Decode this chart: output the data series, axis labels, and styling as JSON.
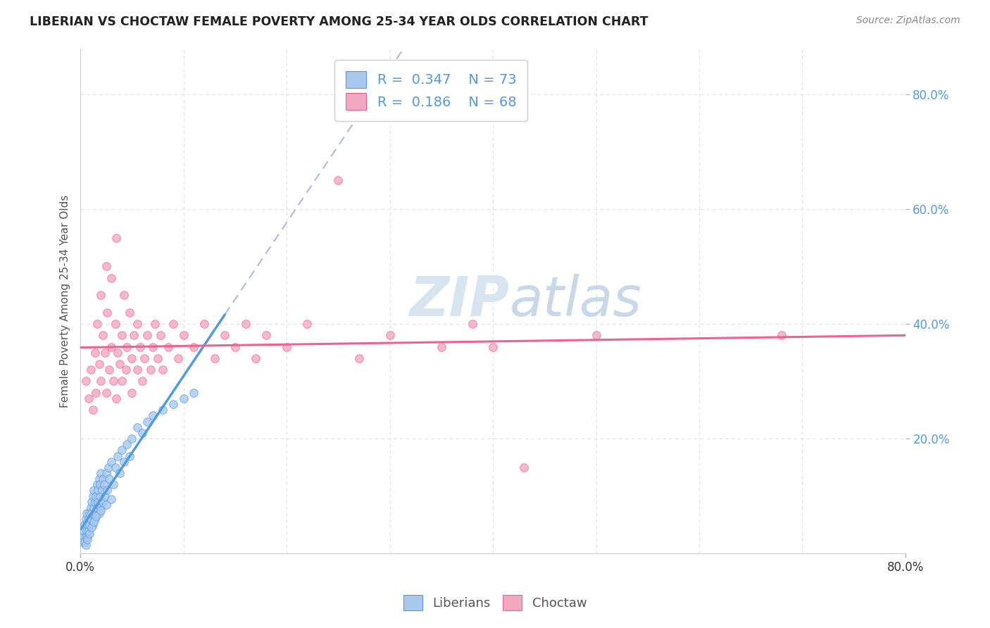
{
  "title": "LIBERIAN VS CHOCTAW FEMALE POVERTY AMONG 25-34 YEAR OLDS CORRELATION CHART",
  "source": "Source: ZipAtlas.com",
  "ylabel": "Female Poverty Among 25-34 Year Olds",
  "xlim": [
    0,
    0.8
  ],
  "ylim": [
    0,
    0.88
  ],
  "ytick_positions": [
    0.2,
    0.4,
    0.6,
    0.8
  ],
  "ytick_labels": [
    "20.0%",
    "40.0%",
    "60.0%",
    "80.0%"
  ],
  "legend_R1": "0.347",
  "legend_N1": "73",
  "legend_R2": "0.186",
  "legend_N2": "68",
  "liberian_color": "#a8c8f0",
  "choctaw_color": "#f4a8c0",
  "liberian_line_color": "#5599dd",
  "choctaw_line_color": "#f06090",
  "ref_line_color": "#aabbdd",
  "watermark_color": "#d8e5f0",
  "background_color": "#ffffff",
  "liberian_points": [
    [
      0.002,
      0.02
    ],
    [
      0.003,
      0.03
    ],
    [
      0.003,
      0.04
    ],
    [
      0.004,
      0.02
    ],
    [
      0.004,
      0.05
    ],
    [
      0.005,
      0.03
    ],
    [
      0.005,
      0.06
    ],
    [
      0.006,
      0.04
    ],
    [
      0.006,
      0.07
    ],
    [
      0.007,
      0.03
    ],
    [
      0.007,
      0.05
    ],
    [
      0.008,
      0.06
    ],
    [
      0.008,
      0.04
    ],
    [
      0.009,
      0.07
    ],
    [
      0.009,
      0.05
    ],
    [
      0.01,
      0.06
    ],
    [
      0.01,
      0.08
    ],
    [
      0.011,
      0.07
    ],
    [
      0.011,
      0.09
    ],
    [
      0.012,
      0.05
    ],
    [
      0.012,
      0.1
    ],
    [
      0.013,
      0.08
    ],
    [
      0.013,
      0.11
    ],
    [
      0.014,
      0.06
    ],
    [
      0.014,
      0.09
    ],
    [
      0.015,
      0.07
    ],
    [
      0.015,
      0.1
    ],
    [
      0.016,
      0.08
    ],
    [
      0.016,
      0.12
    ],
    [
      0.017,
      0.09
    ],
    [
      0.017,
      0.11
    ],
    [
      0.018,
      0.13
    ],
    [
      0.018,
      0.07
    ],
    [
      0.019,
      0.1
    ],
    [
      0.019,
      0.12
    ],
    [
      0.02,
      0.08
    ],
    [
      0.02,
      0.14
    ],
    [
      0.021,
      0.11
    ],
    [
      0.022,
      0.09
    ],
    [
      0.022,
      0.13
    ],
    [
      0.023,
      0.12
    ],
    [
      0.024,
      0.1
    ],
    [
      0.025,
      0.14
    ],
    [
      0.026,
      0.11
    ],
    [
      0.027,
      0.15
    ],
    [
      0.028,
      0.13
    ],
    [
      0.03,
      0.16
    ],
    [
      0.032,
      0.12
    ],
    [
      0.034,
      0.15
    ],
    [
      0.036,
      0.17
    ],
    [
      0.038,
      0.14
    ],
    [
      0.04,
      0.18
    ],
    [
      0.042,
      0.16
    ],
    [
      0.045,
      0.19
    ],
    [
      0.048,
      0.17
    ],
    [
      0.05,
      0.2
    ],
    [
      0.055,
      0.22
    ],
    [
      0.06,
      0.21
    ],
    [
      0.065,
      0.23
    ],
    [
      0.07,
      0.24
    ],
    [
      0.08,
      0.25
    ],
    [
      0.09,
      0.26
    ],
    [
      0.1,
      0.27
    ],
    [
      0.11,
      0.28
    ],
    [
      0.005,
      0.015
    ],
    [
      0.007,
      0.025
    ],
    [
      0.009,
      0.035
    ],
    [
      0.011,
      0.045
    ],
    [
      0.013,
      0.055
    ],
    [
      0.015,
      0.065
    ],
    [
      0.02,
      0.075
    ],
    [
      0.025,
      0.085
    ],
    [
      0.03,
      0.095
    ]
  ],
  "choctaw_points": [
    [
      0.005,
      0.3
    ],
    [
      0.008,
      0.27
    ],
    [
      0.01,
      0.32
    ],
    [
      0.012,
      0.25
    ],
    [
      0.014,
      0.35
    ],
    [
      0.015,
      0.28
    ],
    [
      0.016,
      0.4
    ],
    [
      0.018,
      0.33
    ],
    [
      0.02,
      0.3
    ],
    [
      0.02,
      0.45
    ],
    [
      0.022,
      0.38
    ],
    [
      0.024,
      0.35
    ],
    [
      0.025,
      0.28
    ],
    [
      0.025,
      0.5
    ],
    [
      0.026,
      0.42
    ],
    [
      0.028,
      0.32
    ],
    [
      0.03,
      0.36
    ],
    [
      0.03,
      0.48
    ],
    [
      0.032,
      0.3
    ],
    [
      0.034,
      0.4
    ],
    [
      0.035,
      0.27
    ],
    [
      0.035,
      0.55
    ],
    [
      0.036,
      0.35
    ],
    [
      0.038,
      0.33
    ],
    [
      0.04,
      0.38
    ],
    [
      0.04,
      0.3
    ],
    [
      0.042,
      0.45
    ],
    [
      0.044,
      0.32
    ],
    [
      0.045,
      0.36
    ],
    [
      0.048,
      0.42
    ],
    [
      0.05,
      0.28
    ],
    [
      0.05,
      0.34
    ],
    [
      0.052,
      0.38
    ],
    [
      0.055,
      0.32
    ],
    [
      0.055,
      0.4
    ],
    [
      0.058,
      0.36
    ],
    [
      0.06,
      0.3
    ],
    [
      0.062,
      0.34
    ],
    [
      0.065,
      0.38
    ],
    [
      0.068,
      0.32
    ],
    [
      0.07,
      0.36
    ],
    [
      0.072,
      0.4
    ],
    [
      0.075,
      0.34
    ],
    [
      0.078,
      0.38
    ],
    [
      0.08,
      0.32
    ],
    [
      0.085,
      0.36
    ],
    [
      0.09,
      0.4
    ],
    [
      0.095,
      0.34
    ],
    [
      0.1,
      0.38
    ],
    [
      0.11,
      0.36
    ],
    [
      0.12,
      0.4
    ],
    [
      0.13,
      0.34
    ],
    [
      0.14,
      0.38
    ],
    [
      0.15,
      0.36
    ],
    [
      0.16,
      0.4
    ],
    [
      0.17,
      0.34
    ],
    [
      0.18,
      0.38
    ],
    [
      0.2,
      0.36
    ],
    [
      0.22,
      0.4
    ],
    [
      0.25,
      0.65
    ],
    [
      0.27,
      0.34
    ],
    [
      0.3,
      0.38
    ],
    [
      0.35,
      0.36
    ],
    [
      0.38,
      0.4
    ],
    [
      0.4,
      0.36
    ],
    [
      0.43,
      0.15
    ],
    [
      0.5,
      0.38
    ],
    [
      0.68,
      0.38
    ]
  ]
}
